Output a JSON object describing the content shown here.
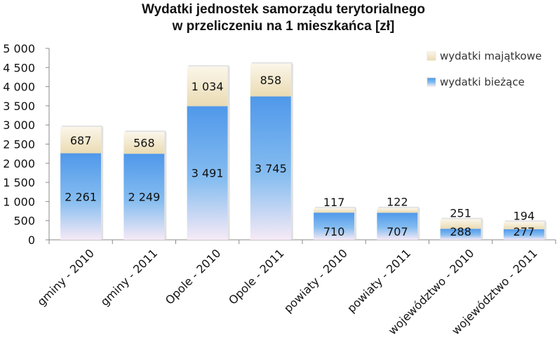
{
  "chart_data": {
    "type": "bar",
    "stacked": true,
    "title": "Wydatki jednostek samorządu terytorialnego",
    "subtitle": "w przeliczeniu na 1 mieszkańca [zł]",
    "categories": [
      "gminy - 2010",
      "gminy - 2011",
      "Opole - 2010",
      "Opole - 2011",
      "powiaty - 2010",
      "powiaty - 2011",
      "województwo - 2010",
      "województwo - 2011"
    ],
    "series": [
      {
        "name": "wydatki bieżące",
        "values": [
          2261,
          2249,
          3491,
          3745,
          710,
          707,
          288,
          277
        ],
        "labels": [
          "2 261",
          "2 249",
          "3 491",
          "3 745",
          "710",
          "707",
          "288",
          "277"
        ],
        "color": "#5ea4ec"
      },
      {
        "name": "wydatki majątkowe",
        "values": [
          687,
          568,
          1034,
          858,
          117,
          122,
          251,
          194
        ],
        "labels": [
          "687",
          "568",
          "1 034",
          "858",
          "117",
          "122",
          "251",
          "194"
        ],
        "color": "#f2e7cb"
      }
    ],
    "ylim": [
      0,
      5000
    ],
    "yticks": [
      0,
      500,
      1000,
      1500,
      2000,
      2500,
      3000,
      3500,
      4000,
      4500,
      5000
    ],
    "ytick_labels": [
      "0",
      "500",
      "1 000",
      "1 500",
      "2 000",
      "2 500",
      "3 000",
      "3 500",
      "4 000",
      "4 500",
      "5 000"
    ],
    "xlabel": "",
    "ylabel": "",
    "grid": false,
    "legend": "top-right"
  }
}
